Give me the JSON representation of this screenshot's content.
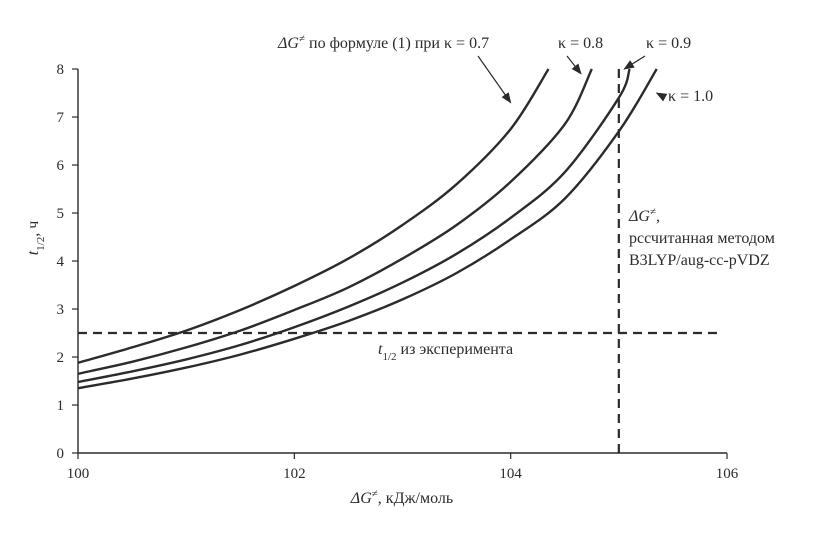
{
  "chart_data": {
    "type": "line",
    "xlabel_prefix": "ΔG",
    "xlabel_sup": "≠",
    "xlabel_suffix": ", кДж/моль",
    "ylabel_main": "t",
    "ylabel_sub": "1/2",
    "ylabel_suffix": ", ч",
    "xlim": [
      100,
      106
    ],
    "ylim": [
      0,
      8
    ],
    "xticks": [
      100,
      102,
      104,
      106
    ],
    "yticks": [
      0,
      1,
      2,
      3,
      4,
      5,
      6,
      7,
      8
    ],
    "series": [
      {
        "name": "κ = 0.7",
        "x": [
          100.0,
          100.5,
          101.0,
          101.5,
          102.0,
          102.5,
          103.0,
          103.5,
          104.0,
          104.35
        ],
        "y": [
          1.88,
          2.2,
          2.55,
          2.98,
          3.48,
          4.05,
          4.75,
          5.6,
          6.75,
          8.0
        ]
      },
      {
        "name": "κ = 0.8",
        "x": [
          100.0,
          100.5,
          101.0,
          101.5,
          102.0,
          102.5,
          103.0,
          103.5,
          104.0,
          104.5,
          104.75
        ],
        "y": [
          1.65,
          1.9,
          2.2,
          2.55,
          2.98,
          3.45,
          4.05,
          4.75,
          5.65,
          6.85,
          8.0
        ]
      },
      {
        "name": "κ = 0.9",
        "x": [
          100.0,
          100.5,
          101.0,
          101.5,
          102.0,
          102.5,
          103.0,
          103.5,
          104.0,
          104.5,
          105.0,
          105.1
        ],
        "y": [
          1.48,
          1.7,
          1.95,
          2.25,
          2.62,
          3.05,
          3.55,
          4.15,
          4.9,
          5.85,
          7.4,
          8.0
        ]
      },
      {
        "name": "κ = 1.0",
        "x": [
          100.0,
          100.5,
          101.0,
          101.5,
          102.0,
          102.5,
          103.0,
          103.5,
          104.0,
          104.5,
          105.0,
          105.35
        ],
        "y": [
          1.35,
          1.55,
          1.78,
          2.05,
          2.38,
          2.75,
          3.2,
          3.75,
          4.45,
          5.3,
          6.7,
          8.0
        ]
      }
    ],
    "reference_lines": [
      {
        "orientation": "horizontal",
        "value": 2.5,
        "style": "dashed",
        "x_start": 100,
        "x_end": 105.95
      },
      {
        "orientation": "vertical",
        "value": 105.0,
        "style": "dashed",
        "y_start": 0,
        "y_end": 8
      }
    ],
    "annotations": {
      "k07": {
        "prefix": "ΔG",
        "sup": "≠",
        "text": " по формуле (1) при κ = 0.7",
        "point": [
          104.0,
          7.3
        ]
      },
      "k08": {
        "text": "κ = 0.8",
        "point": [
          104.65,
          7.9
        ]
      },
      "k09": {
        "text": "κ = 0.9",
        "point": [
          105.05,
          8.0
        ]
      },
      "k10": {
        "text": "κ = 1.0",
        "point": [
          105.35,
          7.5
        ]
      },
      "calc": {
        "prefix": "ΔG",
        "sup": "≠",
        "suffix": ",",
        "line2": "рссчитанная методом",
        "line3": "B3LYP/aug-cc-pVDZ"
      },
      "exp": {
        "main": "t",
        "sub": "1/2",
        "text": " из эксперимента"
      }
    }
  }
}
